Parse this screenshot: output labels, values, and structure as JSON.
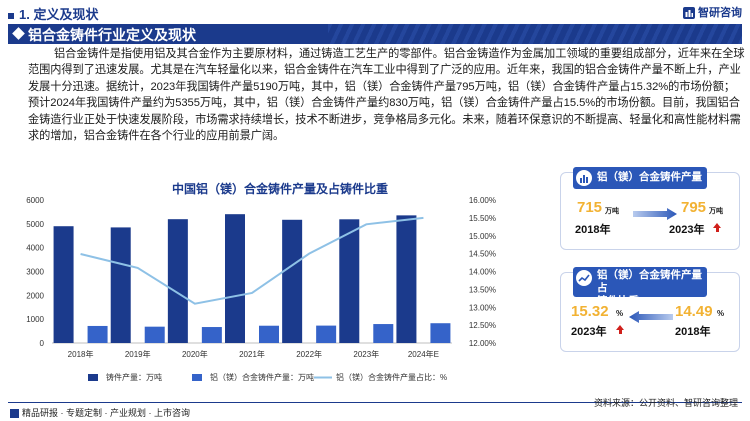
{
  "header": {
    "section": "1. 定义及现状",
    "brand": "智研咨询",
    "banner_title": "铝合金铸件行业定义及现状"
  },
  "paragraph": "铝合金铸件是指使用铝及其合金作为主要原材料，通过铸造工艺生产的零部件。铝合金铸造作为金属加工领域的重要组成部分，近年来在全球范围内得到了迅速发展。尤其是在汽车轻量化以来，铝合金铸件在汽车工业中得到了广泛的应用。近年来，我国的铝合金铸件产量不断上升，产业发展十分迅速。据统计，2023年我国铸件产量5190万吨，其中，铝（镁）合金铸件产量795万吨，铝（镁）合金铸件产量占15.32%的市场份额；预计2024年我国铸件产量约为5355万吨，其中，铝（镁）合金铸件产量约830万吨，铝（镁）合金铸件产量占15.5%的市场份额。目前，我国铝合金铸造行业正处于快速发展阶段，市场需求持续增长，技术不断进步，竞争格局多元化。未来，随着环保意识的不断提高、轻量化和高性能材料需求的增加，铝合金铸件在各个行业的应用前景广阔。",
  "chart_data": {
    "type": "bar",
    "title": "中国铝（镁）合金铸件产量及占铸件比重",
    "categories": [
      "2018年",
      "2019年",
      "2020年",
      "2021年",
      "2022年",
      "2023年",
      "2024年E"
    ],
    "series": [
      {
        "name": "铸件产量：万吨",
        "type": "bar",
        "axis": "left",
        "color": "#1b3a8c",
        "values": [
          4900,
          4850,
          5195,
          5405,
          5170,
          5190,
          5355
        ]
      },
      {
        "name": "铝（镁）合金铸件产量：万吨",
        "type": "bar",
        "axis": "left",
        "color": "#3563c9",
        "values": [
          715,
          685,
          670,
          725,
          730,
          795,
          830
        ]
      },
      {
        "name": "铝（镁）合金铸件产量占比：%",
        "type": "line",
        "axis": "right",
        "color": "#8ec1e6",
        "values": [
          14.49,
          14.1,
          13.1,
          13.4,
          14.5,
          15.32,
          15.5
        ]
      }
    ],
    "ylim_left": [
      0,
      6000
    ],
    "yticks_left": [
      "0",
      "1000",
      "2000",
      "3000",
      "4000",
      "5000",
      "6000"
    ],
    "ylim_right": [
      12.0,
      16.0
    ],
    "yticks_right": [
      "12.00%",
      "12.50%",
      "13.00%",
      "13.50%",
      "14.00%",
      "14.50%",
      "15.00%",
      "15.50%",
      "16.00%"
    ],
    "grid": false,
    "legend_position": "bottom"
  },
  "panel1": {
    "title": "铝（镁）合金铸件产量",
    "left_value": "715",
    "left_unit": "万吨",
    "left_year": "2018年",
    "right_value": "795",
    "right_unit": "万吨",
    "right_year": "2023年"
  },
  "panel2": {
    "title_line1": "铝（镁）合金铸件产量占",
    "title_line2": "铸件比重",
    "left_value": "15.32",
    "left_unit": "%",
    "left_year": "2023年",
    "right_value": "14.49",
    "right_unit": "%",
    "right_year": "2018年"
  },
  "footer": {
    "left": "精品研报 · 专题定制 · 产业规划 · 上市咨询",
    "source": "资料来源：公开资料、智研咨询整理"
  },
  "colors": {
    "primary": "#1b3a8c",
    "accent_yellow": "#f2b233",
    "up_red": "#d0201b"
  }
}
